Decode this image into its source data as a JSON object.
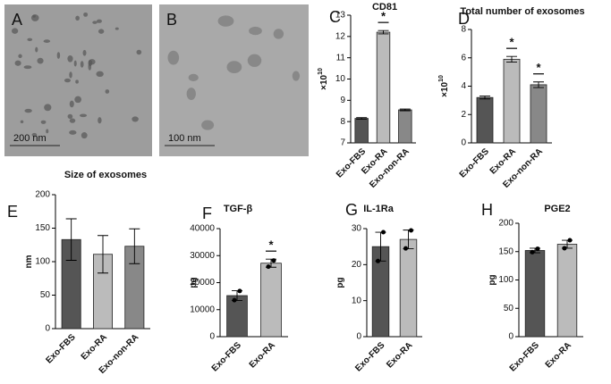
{
  "images": [
    {
      "label": "A",
      "scale_bar": "200 nm"
    },
    {
      "label": "B",
      "scale_bar": "100 nm"
    }
  ],
  "chart_data": [
    {
      "type": "bar",
      "panel": "C",
      "title": "CD81",
      "ylabel": "×10",
      "ylabel_exponent": "10",
      "categories": [
        "Exo-FBS",
        "Exo-RA",
        "Exo-non-RA"
      ],
      "colors": [
        "#555555",
        "#bbbbbb",
        "#888888"
      ],
      "values": [
        8.15,
        12.2,
        8.55
      ],
      "errors": [
        0.04,
        0.08,
        0.04
      ],
      "value_annotations": [
        null,
        "*",
        null
      ],
      "ylim": [
        7,
        13
      ],
      "yticks": [
        7,
        8,
        9,
        10,
        11,
        12,
        13
      ]
    },
    {
      "type": "bar",
      "panel": "D",
      "title": "Total number of exosomes",
      "ylabel": "×10",
      "ylabel_exponent": "10",
      "categories": [
        "Exo-FBS",
        "Exo-RA",
        "Exo-non-RA"
      ],
      "colors": [
        "#555555",
        "#bbbbbb",
        "#888888"
      ],
      "values": [
        3.2,
        5.9,
        4.1
      ],
      "errors": [
        0.1,
        0.2,
        0.2
      ],
      "value_annotations": [
        null,
        "*",
        "*"
      ],
      "ylim": [
        0,
        8
      ],
      "yticks": [
        0,
        2,
        4,
        6,
        8
      ]
    },
    {
      "type": "bar",
      "panel": "E",
      "title": "Size of exosomes",
      "ylabel": "nm",
      "categories": [
        "Exo-FBS",
        "Exo-RA",
        "Exo-non-RA"
      ],
      "colors": [
        "#555555",
        "#bbbbbb",
        "#888888"
      ],
      "values": [
        133,
        111,
        123
      ],
      "errors": [
        31,
        28,
        26
      ],
      "ylim": [
        0,
        200
      ],
      "yticks": [
        0,
        50,
        100,
        150,
        200
      ]
    },
    {
      "type": "bar",
      "panel": "F",
      "title": "TGF-β",
      "ylabel": "pg",
      "categories": [
        "Exo-FBS",
        "Exo-RA"
      ],
      "colors": [
        "#555555",
        "#bbbbbb"
      ],
      "values": [
        15200,
        27200
      ],
      "errors": [
        1800,
        1500
      ],
      "points": [
        [
          13500,
          16900
        ],
        [
          25900,
          28200
        ]
      ],
      "value_annotations": [
        null,
        "*"
      ],
      "ylim": [
        0,
        40000
      ],
      "yticks": [
        0,
        10000,
        20000,
        30000,
        40000
      ]
    },
    {
      "type": "bar",
      "panel": "G",
      "title": "IL-1Ra",
      "ylabel": "pg",
      "categories": [
        "Exo-FBS",
        "Exo-RA"
      ],
      "colors": [
        "#555555",
        "#bbbbbb"
      ],
      "values": [
        25,
        27
      ],
      "errors": [
        4,
        2.6
      ],
      "points": [
        [
          21,
          29
        ],
        [
          24.5,
          29.5
        ]
      ],
      "ylim": [
        0,
        30
      ],
      "yticks": [
        0,
        10,
        20,
        30
      ]
    },
    {
      "type": "bar",
      "panel": "H",
      "title": "PGE2",
      "ylabel": "pg",
      "categories": [
        "Exo-FBS",
        "Exo-RA"
      ],
      "colors": [
        "#555555",
        "#bbbbbb"
      ],
      "values": [
        152,
        163
      ],
      "errors": [
        4,
        7
      ],
      "points": [
        [
          149,
          155
        ],
        [
          156,
          170
        ]
      ],
      "ylim": [
        0,
        200
      ],
      "yticks": [
        0,
        50,
        100,
        150,
        200
      ]
    }
  ]
}
